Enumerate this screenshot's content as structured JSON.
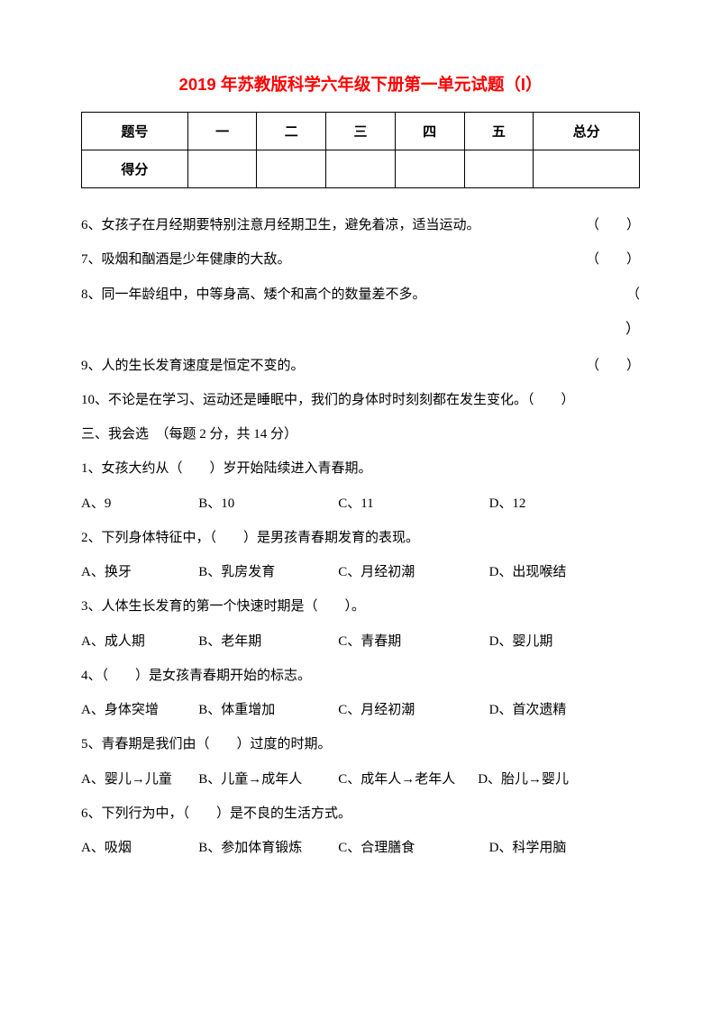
{
  "colors": {
    "title_color": "#ff0000",
    "text_color": "#000000",
    "border_color": "#000000",
    "background": "#ffffff"
  },
  "fonts": {
    "title_size": 18.5,
    "body_size": 15,
    "title_family": "SimHei",
    "body_family": "SimSun"
  },
  "title": "2019 年苏教版科学六年级下册第一单元试题（I）",
  "score_table": {
    "headers": [
      "题号",
      "一",
      "二",
      "三",
      "四",
      "五",
      "总分"
    ],
    "row2_label": "得分"
  },
  "tf_questions": {
    "q6": "6、女孩子在月经期要特别注意月经期卫生，避免着凉，适当运动。",
    "q7": "7、吸烟和酗酒是少年健康的大敌。",
    "q8": "8、同一年龄组中，中等身高、矮个和高个的数量差不多。",
    "q9": "9、人的生长发育速度是恒定不变的。",
    "q10": "10、不论是在学习、运动还是睡眠中，我们的身体时时刻刻都在发生变化。（　　）",
    "paren": "（　　）",
    "paren_open": "（",
    "paren_close": "）"
  },
  "section3_title": "三、我会选　（每题 2 分，共 14 分）",
  "mc_questions": {
    "q1": {
      "text": "1、女孩大约从（　　）岁开始陆续进入青春期。",
      "a": "A、9",
      "b": "B、10",
      "c": "C、11",
      "d": "D、12"
    },
    "q2": {
      "text": "2、下列身体特征中，（　　）是男孩青春期发育的表现。",
      "a": "A、换牙",
      "b": "B、乳房发育",
      "c": "C、月经初潮",
      "d": "D、出现喉结"
    },
    "q3": {
      "text": "3、人体生长发育的第一个快速时期是（　　）。",
      "a": "A、成人期",
      "b": "B、老年期",
      "c": "C、青春期",
      "d": "D、婴儿期"
    },
    "q4": {
      "text": "4、（　　）是女孩青春期开始的标志。",
      "a": "A、身体突增",
      "b": "B、体重增加",
      "c": "C、月经初潮",
      "d": "D、首次遗精"
    },
    "q5": {
      "text": "5、青春期是我们由（　　）过度的时期。",
      "a": "A、婴儿→儿童",
      "b": "B、儿童→成年人",
      "c": "C、成年人→老年人",
      "d": "D、胎儿→婴儿"
    },
    "q6": {
      "text": "6、下列行为中，（　　）是不良的生活方式。",
      "a": "A、吸烟",
      "b": "B、参加体育锻炼",
      "c": "C、合理膳食",
      "d": "D、科学用脑"
    }
  }
}
